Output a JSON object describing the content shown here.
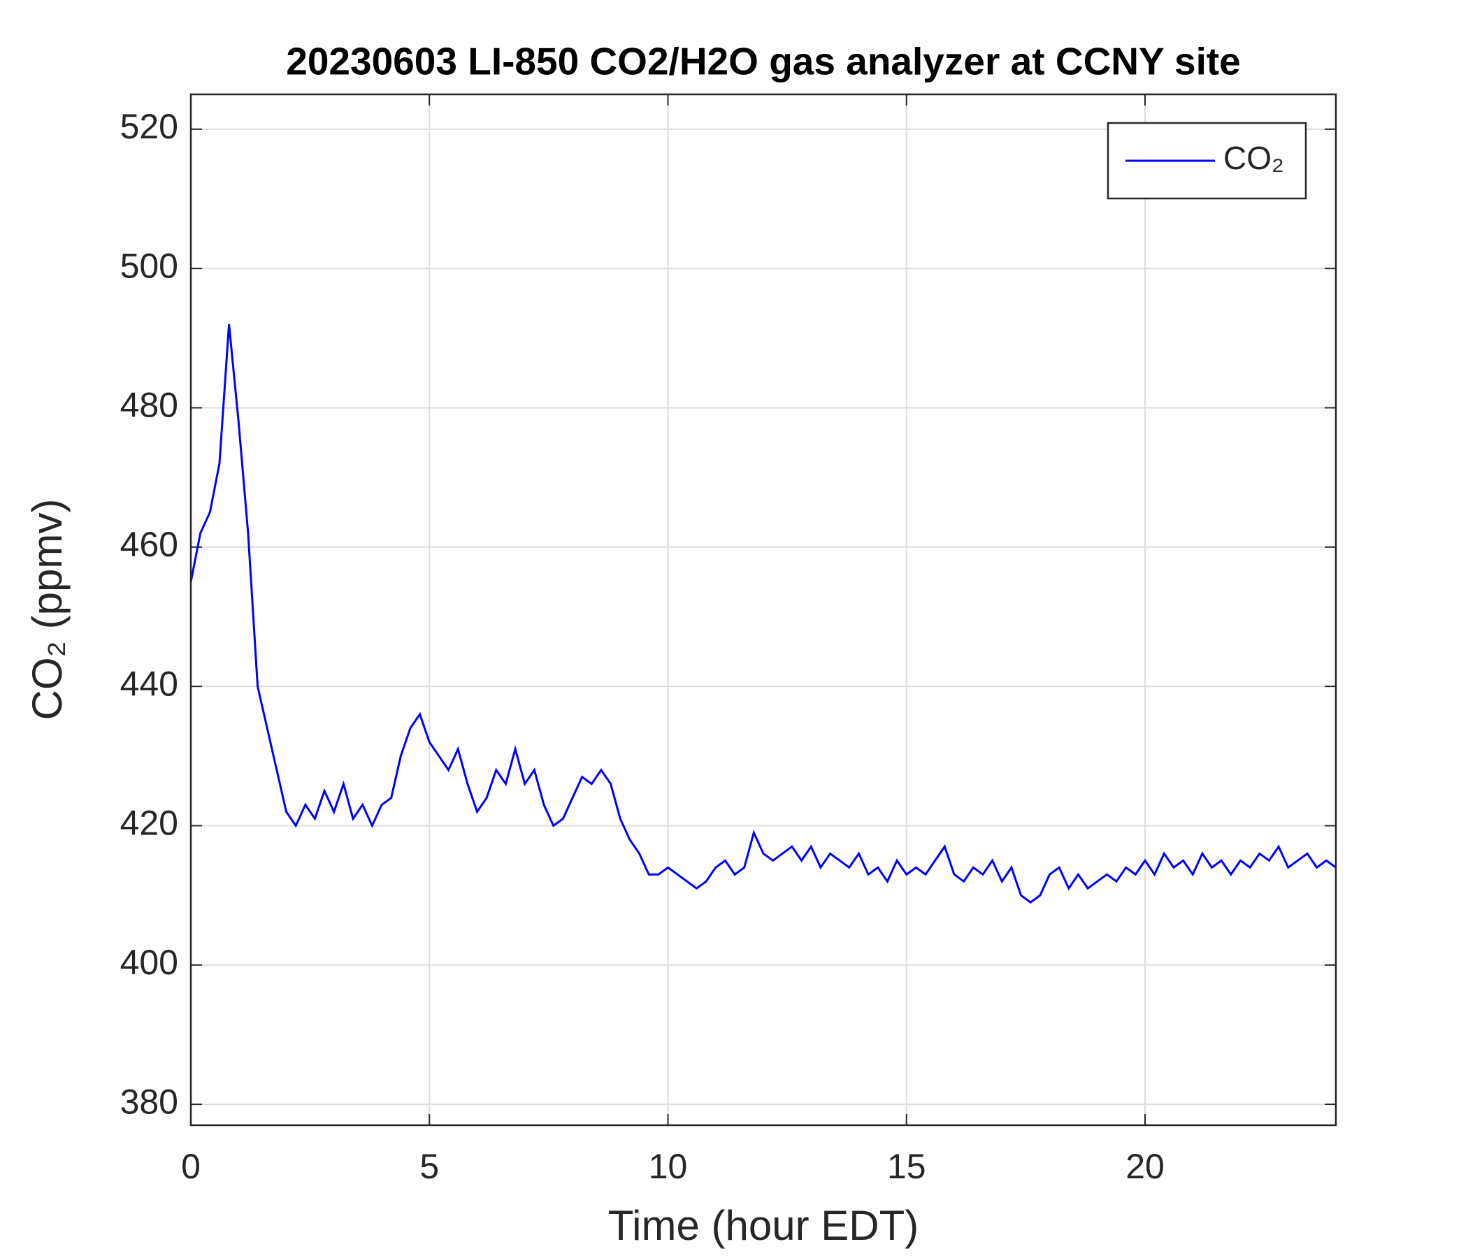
{
  "chart_data": {
    "type": "line",
    "title": "20230603 LI-850 CO2/H2O gas analyzer at CCNY site",
    "xlabel": "Time (hour EDT)",
    "ylabel": "CO₂ (ppmv)",
    "x": [
      0,
      0.2,
      0.4,
      0.6,
      0.8,
      1.0,
      1.2,
      1.4,
      1.6,
      1.8,
      2.0,
      2.2,
      2.4,
      2.6,
      2.8,
      3.0,
      3.2,
      3.4,
      3.6,
      3.8,
      4.0,
      4.2,
      4.4,
      4.6,
      4.8,
      5.0,
      5.2,
      5.4,
      5.6,
      5.8,
      6.0,
      6.2,
      6.4,
      6.6,
      6.8,
      7.0,
      7.2,
      7.4,
      7.6,
      7.8,
      8.0,
      8.2,
      8.4,
      8.6,
      8.8,
      9.0,
      9.2,
      9.4,
      9.6,
      9.8,
      10.0,
      10.2,
      10.4,
      10.6,
      10.8,
      11.0,
      11.2,
      11.4,
      11.6,
      11.8,
      12.0,
      12.2,
      12.4,
      12.6,
      12.8,
      13.0,
      13.2,
      13.4,
      13.6,
      13.8,
      14.0,
      14.2,
      14.4,
      14.6,
      14.8,
      15.0,
      15.2,
      15.4,
      15.6,
      15.8,
      16.0,
      16.2,
      16.4,
      16.6,
      16.8,
      17.0,
      17.2,
      17.4,
      17.6,
      17.8,
      18.0,
      18.2,
      18.4,
      18.6,
      18.8,
      19.0,
      19.2,
      19.4,
      19.6,
      19.8,
      20.0,
      20.2,
      20.4,
      20.6,
      20.8,
      21.0,
      21.2,
      21.4,
      21.6,
      21.8,
      22.0,
      22.2,
      22.4,
      22.6,
      22.8,
      23.0,
      23.2,
      23.4,
      23.6,
      23.8,
      24.0
    ],
    "series": [
      {
        "name": "CO₂",
        "color": "#0000ff",
        "values": [
          455,
          462,
          465,
          472,
          492,
          478,
          462,
          440,
          434,
          428,
          422,
          420,
          423,
          421,
          425,
          422,
          426,
          421,
          423,
          420,
          423,
          424,
          430,
          434,
          436,
          432,
          430,
          428,
          431,
          426,
          422,
          424,
          428,
          426,
          431,
          426,
          428,
          423,
          420,
          421,
          424,
          427,
          426,
          428,
          426,
          421,
          418,
          416,
          413,
          413,
          414,
          413,
          412,
          411,
          412,
          414,
          415,
          413,
          414,
          419,
          416,
          415,
          416,
          417,
          415,
          417,
          414,
          416,
          415,
          414,
          416,
          413,
          414,
          412,
          415,
          413,
          414,
          413,
          415,
          417,
          413,
          412,
          414,
          413,
          415,
          412,
          414,
          410,
          409,
          410,
          413,
          414,
          411,
          413,
          411,
          412,
          413,
          412,
          414,
          413,
          415,
          413,
          416,
          414,
          415,
          413,
          416,
          414,
          415,
          413,
          415,
          414,
          416,
          415,
          417,
          414,
          415,
          416,
          414,
          415,
          414
        ]
      }
    ],
    "xlim": [
      0,
      24
    ],
    "xticks": [
      0,
      5,
      10,
      15,
      20
    ],
    "ylim": [
      377,
      525
    ],
    "yticks": [
      380,
      400,
      420,
      440,
      460,
      480,
      500,
      520
    ],
    "grid": true,
    "legend": "upper right"
  }
}
